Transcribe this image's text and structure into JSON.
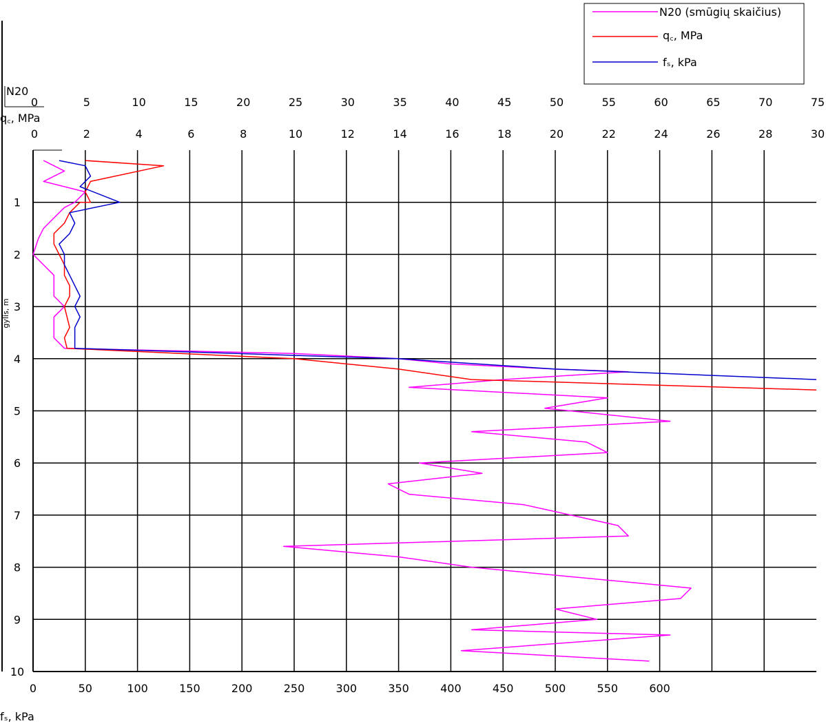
{
  "chart_data": {
    "type": "line",
    "y_axis": {
      "label": "gylis, m",
      "range": [
        0,
        10
      ],
      "ticks": [
        "1",
        "2",
        "3",
        "4",
        "5",
        "6",
        "7",
        "8",
        "9",
        "10"
      ],
      "inverted": true
    },
    "x_axes": [
      {
        "id": "n20",
        "label": "N20",
        "range": [
          0,
          75
        ],
        "ticks": [
          "0",
          "5",
          "10",
          "15",
          "20",
          "25",
          "30",
          "35",
          "40",
          "45",
          "50",
          "55",
          "60",
          "65",
          "70",
          "75"
        ],
        "position": "top"
      },
      {
        "id": "qc",
        "label": "q꜀, MPa",
        "range": [
          0,
          30
        ],
        "ticks": [
          "0",
          "2",
          "4",
          "6",
          "8",
          "10",
          "12",
          "14",
          "16",
          "18",
          "20",
          "22",
          "24",
          "26",
          "28",
          "30"
        ],
        "position": "top"
      },
      {
        "id": "fs",
        "label": "fₛ, kPa",
        "range": [
          0,
          750
        ],
        "ticks": [
          "0",
          "50",
          "100",
          "150",
          "200",
          "250",
          "300",
          "350",
          "400",
          "450",
          "500",
          "550",
          "600"
        ],
        "position": "bottom"
      }
    ],
    "grid": true,
    "legend_position": "top-right",
    "series": [
      {
        "name": "N20 (smūgių skaičius)",
        "axis": "n20",
        "color": "#ff00ff",
        "points": [
          [
            1,
            0.2
          ],
          [
            3,
            0.4
          ],
          [
            1,
            0.6
          ],
          [
            5,
            0.8
          ],
          [
            4,
            1
          ],
          [
            3,
            1.1
          ],
          [
            2,
            1.3
          ],
          [
            1,
            1.5
          ],
          [
            0.5,
            1.7
          ],
          [
            0,
            2
          ],
          [
            1,
            2.2
          ],
          [
            2,
            2.4
          ],
          [
            2,
            2.6
          ],
          [
            2,
            2.8
          ],
          [
            3,
            3
          ],
          [
            2,
            3.2
          ],
          [
            2,
            3.4
          ],
          [
            2,
            3.6
          ],
          [
            3,
            3.8
          ],
          [
            25,
            3.9
          ],
          [
            35,
            4
          ],
          [
            40,
            4.1
          ],
          [
            50,
            4.2
          ],
          [
            57,
            4.25
          ],
          [
            45,
            4.4
          ],
          [
            36,
            4.55
          ],
          [
            55,
            4.75
          ],
          [
            49,
            4.95
          ],
          [
            61,
            5.2
          ],
          [
            42,
            5.4
          ],
          [
            53,
            5.6
          ],
          [
            55,
            5.8
          ],
          [
            37,
            6
          ],
          [
            43,
            6.2
          ],
          [
            34,
            6.4
          ],
          [
            36,
            6.6
          ],
          [
            47,
            6.8
          ],
          [
            56,
            7.2
          ],
          [
            57,
            7.4
          ],
          [
            24,
            7.6
          ],
          [
            35,
            7.8
          ],
          [
            42,
            8
          ],
          [
            63,
            8.4
          ],
          [
            62,
            8.6
          ],
          [
            50,
            8.8
          ],
          [
            54,
            9
          ],
          [
            42,
            9.2
          ],
          [
            61,
            9.3
          ],
          [
            41,
            9.6
          ],
          [
            59,
            9.8
          ]
        ]
      },
      {
        "name": "q꜀, MPa",
        "axis": "qc",
        "color": "#ff0000",
        "points": [
          [
            2,
            0.2
          ],
          [
            5,
            0.3
          ],
          [
            2.2,
            0.6
          ],
          [
            2,
            0.8
          ],
          [
            2.2,
            1
          ],
          [
            1.8,
            1
          ],
          [
            1.4,
            1.2
          ],
          [
            1.2,
            1.4
          ],
          [
            0.8,
            1.6
          ],
          [
            0.8,
            1.8
          ],
          [
            1,
            2
          ],
          [
            1.2,
            2.2
          ],
          [
            1.2,
            2.4
          ],
          [
            1.4,
            2.6
          ],
          [
            1.4,
            2.8
          ],
          [
            1.2,
            3
          ],
          [
            1.3,
            3.2
          ],
          [
            1.4,
            3.4
          ],
          [
            1.2,
            3.6
          ],
          [
            1.3,
            3.8
          ],
          [
            10,
            4
          ],
          [
            14,
            4.2
          ],
          [
            16.8,
            4.4
          ],
          [
            30,
            4.6
          ]
        ]
      },
      {
        "name": "fₛ, kPa",
        "axis": "fs",
        "color": "#0000cc",
        "points": [
          [
            25,
            0.2
          ],
          [
            50,
            0.3
          ],
          [
            55,
            0.5
          ],
          [
            45,
            0.7
          ],
          [
            83,
            1
          ],
          [
            35,
            1.2
          ],
          [
            40,
            1.4
          ],
          [
            35,
            1.6
          ],
          [
            25,
            1.8
          ],
          [
            30,
            2
          ],
          [
            30,
            2.2
          ],
          [
            35,
            2.4
          ],
          [
            40,
            2.6
          ],
          [
            45,
            2.8
          ],
          [
            40,
            3
          ],
          [
            45,
            3.2
          ],
          [
            40,
            3.4
          ],
          [
            40,
            3.6
          ],
          [
            40,
            3.8
          ],
          [
            350,
            4
          ],
          [
            500,
            4.2
          ],
          [
            750,
            4.4
          ]
        ]
      }
    ]
  }
}
